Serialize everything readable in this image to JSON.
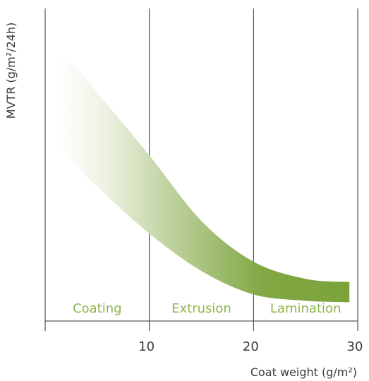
{
  "chart_data": {
    "type": "area",
    "xlabel": "Coat weight (g/m²)",
    "ylabel": "MVTR (g/m²/24h)",
    "x_ticks": [
      10,
      20,
      30
    ],
    "x_tick_labels": [
      "10",
      "20",
      "30"
    ],
    "xlim": [
      0,
      30
    ],
    "y_ticks_shown": false,
    "grid": "vertical lines at 0, 10, 20, 30",
    "band": {
      "x": [
        1.5,
        5,
        10,
        15,
        20,
        25,
        29.2
      ],
      "upper": [
        8.7,
        7.3,
        5.3,
        3.2,
        1.9,
        1.35,
        1.25
      ],
      "lower": [
        5.5,
        4.3,
        2.8,
        1.6,
        0.85,
        0.65,
        0.6
      ]
    },
    "regions": [
      {
        "label": "Coating",
        "x_from": 0,
        "x_to": 10
      },
      {
        "label": "Extrusion",
        "x_from": 10,
        "x_to": 20
      },
      {
        "label": "Lamination",
        "x_from": 20,
        "x_to": 30
      }
    ],
    "colors": {
      "band_light": "#ffffff",
      "band_dark": "#7ba33a",
      "region_label": "#8db54b",
      "axis": "#333333"
    }
  }
}
